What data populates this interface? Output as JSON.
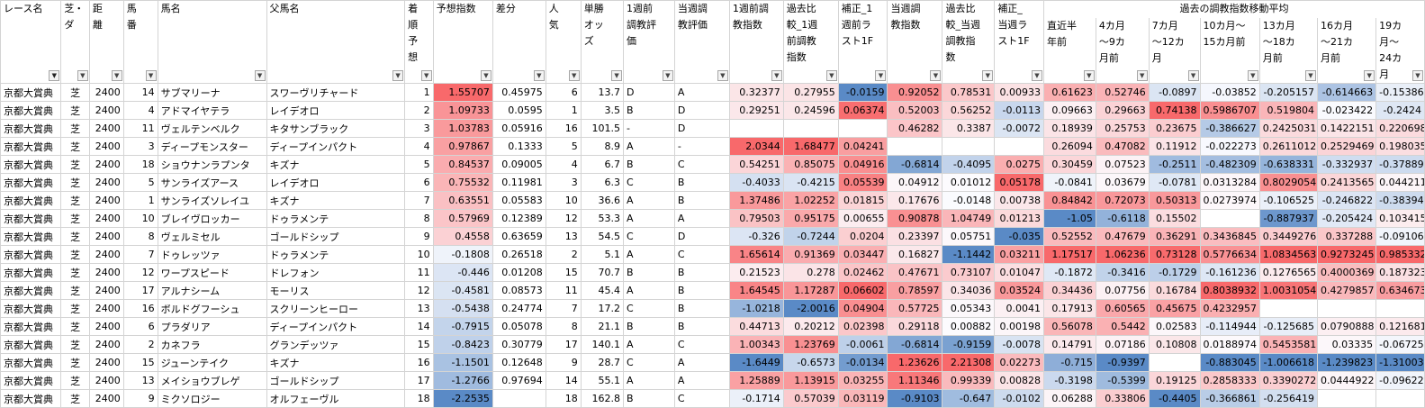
{
  "group_header": "過去の調教指数移動平均",
  "columns": [
    {
      "label": "レース名",
      "filter": "active"
    },
    {
      "label": "芝・ダ",
      "filter": "normal"
    },
    {
      "label": "距離",
      "filter": "normal"
    },
    {
      "label": "馬番",
      "filter": "normal"
    },
    {
      "label": "馬名",
      "filter": "normal"
    },
    {
      "label": "父馬名",
      "filter": "normal"
    },
    {
      "label": "着順予想",
      "filter": "normal"
    },
    {
      "label": "予想指数",
      "filter": "normal"
    },
    {
      "label": "差分",
      "filter": "normal"
    },
    {
      "label": "人気",
      "filter": "normal"
    },
    {
      "label": "単勝オッズ",
      "filter": "normal"
    },
    {
      "label": "1週前調教評価",
      "filter": "normal"
    },
    {
      "label": "当週調教評価",
      "filter": "normal"
    },
    {
      "label": "1週前調教指数",
      "filter": "normal"
    },
    {
      "label": "過去比較_1週前調教指数",
      "filter": "normal"
    },
    {
      "label": "補正_1週前ラスト1F",
      "filter": "normal"
    },
    {
      "label": "当週調教指数",
      "filter": "normal"
    },
    {
      "label": "過去比較_当週調教指数",
      "filter": "normal"
    },
    {
      "label": "補正_当週ラスト1F",
      "filter": "normal"
    },
    {
      "label": "直近半年前",
      "filter": "normal"
    },
    {
      "label": "4カ月～9カ月前",
      "filter": "normal"
    },
    {
      "label": "7カ月～12カ月",
      "filter": "normal"
    },
    {
      "label": "10カ月～15カ月前",
      "filter": "normal"
    },
    {
      "label": "13カ月～18カ月前",
      "filter": "normal"
    },
    {
      "label": "16カ月～21カ月前",
      "filter": "normal"
    },
    {
      "label": "19カ月～24カ月",
      "filter": "normal"
    }
  ],
  "rows": [
    [
      "京都大賞典",
      "芝",
      "2400",
      "14",
      "サブマリーナ",
      "スワーヴリチャード",
      "1",
      "1.55707",
      "0.45975",
      "6",
      "13.7",
      "D",
      "A",
      "0.32377",
      "0.27955",
      "-0.0159",
      "0.92052",
      "0.78531",
      "0.00933",
      "0.61623",
      "0.52746",
      "-0.0897",
      "-0.03852",
      "-0.205157",
      "-0.614663",
      "-0.15386"
    ],
    [
      "京都大賞典",
      "芝",
      "2400",
      "4",
      "アドマイヤテラ",
      "レイデオロ",
      "2",
      "1.09733",
      "0.0595",
      "1",
      "3.5",
      "B",
      "D",
      "0.29251",
      "0.24596",
      "0.06374",
      "0.52003",
      "0.56252",
      "-0.0113",
      "0.09663",
      "0.29663",
      "0.74138",
      "0.5986707",
      "0.519804",
      "-0.023422",
      "-0.2424"
    ],
    [
      "京都大賞典",
      "芝",
      "2400",
      "11",
      "ヴェルテンベルク",
      "キタサンブラック",
      "3",
      "1.03783",
      "0.05916",
      "16",
      "101.5",
      "-",
      "D",
      "",
      "",
      "",
      "0.46282",
      "0.3387",
      "-0.0072",
      "0.18939",
      "0.25753",
      "0.23675",
      "-0.386627",
      "0.2425031",
      "0.1422151",
      "0.220698"
    ],
    [
      "京都大賞典",
      "芝",
      "2400",
      "3",
      "ディープモンスター",
      "ディープインパクト",
      "4",
      "0.97867",
      "0.1333",
      "5",
      "8.9",
      "A",
      "-",
      "2.0344",
      "1.68477",
      "0.04241",
      "",
      "",
      "",
      "0.26094",
      "0.47082",
      "0.11912",
      "-0.022273",
      "0.2611012",
      "0.2529469",
      "0.198035"
    ],
    [
      "京都大賞典",
      "芝",
      "2400",
      "18",
      "ショウナンラプンタ",
      "キズナ",
      "5",
      "0.84537",
      "0.09005",
      "4",
      "6.7",
      "B",
      "C",
      "0.54251",
      "0.85075",
      "0.04916",
      "-0.6814",
      "-0.4095",
      "0.0275",
      "0.30459",
      "0.07523",
      "-0.2511",
      "-0.482309",
      "-0.638331",
      "-0.332937",
      "-0.37889"
    ],
    [
      "京都大賞典",
      "芝",
      "2400",
      "5",
      "サンライズアース",
      "レイデオロ",
      "6",
      "0.75532",
      "0.11981",
      "3",
      "6.3",
      "C",
      "B",
      "-0.4033",
      "-0.4215",
      "0.05539",
      "0.04912",
      "0.01012",
      "0.05178",
      "-0.0841",
      "0.03679",
      "-0.0781",
      "0.0313284",
      "0.8029054",
      "0.2413565",
      "0.044211"
    ],
    [
      "京都大賞典",
      "芝",
      "2400",
      "1",
      "サンライズソレイユ",
      "キズナ",
      "7",
      "0.63551",
      "0.05583",
      "10",
      "36.6",
      "A",
      "B",
      "1.37486",
      "1.02252",
      "0.01815",
      "0.17676",
      "-0.0148",
      "0.00738",
      "0.84842",
      "0.72073",
      "0.50313",
      "0.0273974",
      "-0.106525",
      "-0.246822",
      "-0.38394"
    ],
    [
      "京都大賞典",
      "芝",
      "2400",
      "10",
      "ブレイヴロッカー",
      "ドゥラメンテ",
      "8",
      "0.57969",
      "0.12389",
      "12",
      "53.3",
      "A",
      "A",
      "0.79503",
      "0.95175",
      "0.00655",
      "0.90878",
      "1.04749",
      "0.01213",
      "-1.05",
      "-0.6118",
      "0.15502",
      "",
      "-0.887937",
      "-0.205424",
      "0.103415"
    ],
    [
      "京都大賞典",
      "芝",
      "2400",
      "8",
      "ヴェルミセル",
      "ゴールドシップ",
      "9",
      "0.4558",
      "0.63659",
      "13",
      "54.5",
      "C",
      "D",
      "-0.326",
      "-0.7244",
      "0.0204",
      "0.23397",
      "0.05751",
      "-0.035",
      "0.52552",
      "0.47679",
      "0.36291",
      "0.3436845",
      "0.3449276",
      "0.337288",
      "-0.09106"
    ],
    [
      "京都大賞典",
      "芝",
      "2400",
      "7",
      "ドゥレッツァ",
      "ドゥラメンテ",
      "10",
      "-0.1808",
      "0.26518",
      "2",
      "5.1",
      "A",
      "C",
      "1.65614",
      "0.91369",
      "0.03447",
      "0.16827",
      "-1.1442",
      "0.03211",
      "1.17517",
      "1.06236",
      "0.73128",
      "0.5776634",
      "1.0834563",
      "0.9273245",
      "0.985332"
    ],
    [
      "京都大賞典",
      "芝",
      "2400",
      "12",
      "ワープスピード",
      "ドレフォン",
      "11",
      "-0.446",
      "0.01208",
      "15",
      "70.7",
      "B",
      "B",
      "0.21523",
      "0.278",
      "0.02462",
      "0.47671",
      "0.73107",
      "0.01047",
      "-0.1872",
      "-0.3416",
      "-0.1729",
      "-0.161236",
      "0.1276565",
      "0.4000369",
      "0.187323"
    ],
    [
      "京都大賞典",
      "芝",
      "2400",
      "17",
      "アルナシーム",
      "モーリス",
      "12",
      "-0.4581",
      "0.08573",
      "11",
      "45.4",
      "A",
      "B",
      "1.64545",
      "1.17287",
      "0.06602",
      "0.78597",
      "0.34036",
      "0.03524",
      "0.34436",
      "0.07756",
      "0.16784",
      "0.8038932",
      "1.0031054",
      "0.4279857",
      "0.634673"
    ],
    [
      "京都大賞典",
      "芝",
      "2400",
      "16",
      "ボルドグフーシュ",
      "スクリーンヒーロー",
      "13",
      "-0.5438",
      "0.24774",
      "7",
      "17.2",
      "C",
      "B",
      "-1.0218",
      "-2.0016",
      "0.04904",
      "0.57725",
      "0.05343",
      "0.0041",
      "0.17913",
      "0.60565",
      "0.45675",
      "0.4232957",
      "",
      "",
      ""
    ],
    [
      "京都大賞典",
      "芝",
      "2400",
      "6",
      "プラダリア",
      "ディープインパクト",
      "14",
      "-0.7915",
      "0.05078",
      "8",
      "21.1",
      "B",
      "B",
      "0.44713",
      "0.20212",
      "0.02398",
      "0.29118",
      "0.00882",
      "0.00198",
      "0.56078",
      "0.5442",
      "0.02583",
      "-0.114944",
      "-0.125685",
      "0.0790888",
      "0.121681"
    ],
    [
      "京都大賞典",
      "芝",
      "2400",
      "2",
      "カネフラ",
      "グランデッツァ",
      "15",
      "-0.8423",
      "0.30779",
      "17",
      "140.1",
      "A",
      "C",
      "1.00343",
      "1.23769",
      "-0.0061",
      "-0.6814",
      "-0.9159",
      "-0.0078",
      "0.14791",
      "0.07186",
      "0.10808",
      "0.0188974",
      "0.5453581",
      "0.03335",
      "-0.06725"
    ],
    [
      "京都大賞典",
      "芝",
      "2400",
      "15",
      "ジューンテイク",
      "キズナ",
      "16",
      "-1.1501",
      "0.12648",
      "9",
      "28.7",
      "C",
      "A",
      "-1.6449",
      "-0.6573",
      "-0.0134",
      "1.23626",
      "2.21308",
      "0.02273",
      "-0.715",
      "-0.9397",
      "",
      "-0.883045",
      "-1.006618",
      "-1.239823",
      "-1.31003"
    ],
    [
      "京都大賞典",
      "芝",
      "2400",
      "13",
      "メイショウブレゲ",
      "ゴールドシップ",
      "17",
      "-1.2766",
      "0.97694",
      "14",
      "55.1",
      "A",
      "A",
      "1.25889",
      "1.13915",
      "0.03255",
      "1.11346",
      "0.99339",
      "0.00828",
      "-0.3198",
      "-0.5399",
      "0.19125",
      "0.2858333",
      "0.3390272",
      "0.0444922",
      "-0.09622"
    ],
    [
      "京都大賞典",
      "芝",
      "2400",
      "9",
      "ミクソロジー",
      "オルフェーヴル",
      "18",
      "-2.2535",
      "",
      "18",
      "162.8",
      "B",
      "C",
      "-0.1714",
      "0.57039",
      "0.03119",
      "-0.9103",
      "-0.647",
      "-0.0102",
      "0.06288",
      "0.33806",
      "-0.4405",
      "-0.366861",
      "-0.256419",
      "",
      ""
    ]
  ],
  "colors": {
    "pos_strong": "#f8696b",
    "neg_strong": "#5a8ac6",
    "neutral": "#fcfcff",
    "grid": "#d4d4d4"
  }
}
